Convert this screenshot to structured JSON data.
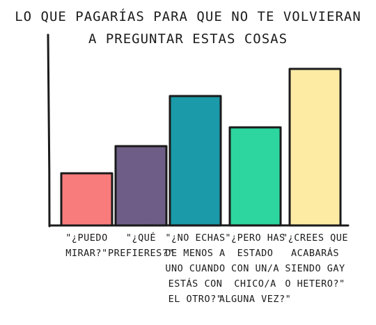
{
  "chart_data": {
    "type": "bar",
    "title": [
      "LO QUE PAGARÍAS PARA QUE NO TE VOLVIERAN",
      "A PREGUNTAR ESTAS COSAS"
    ],
    "xlabel": "",
    "ylabel": "",
    "grid": false,
    "ylim": [
      0,
      100
    ],
    "categories": [
      [
        "\"¿PUEDO",
        "MIRAR?\""
      ],
      [
        "\"¿QUÉ",
        "PREFIERES?\""
      ],
      [
        "\"¿NO ECHAS",
        "DE MENOS A",
        "UNO CUANDO",
        "ESTÁS CON",
        "EL OTRO?\""
      ],
      [
        "\"¿PERO HAS",
        "ESTADO",
        "CON UN/A",
        "CHICO/A",
        "ALGUNA VEZ?\""
      ],
      [
        "\"¿CREES QUE",
        "ACABARÁS",
        "SIENDO GAY",
        "O HETERO?\""
      ]
    ],
    "values": [
      25,
      38,
      62,
      47,
      75
    ],
    "colors": [
      "#f87c7c",
      "#6e5e87",
      "#1b9aa9",
      "#2cd69e",
      "#fdeba4"
    ],
    "outline_color": "#1b1b1b"
  }
}
